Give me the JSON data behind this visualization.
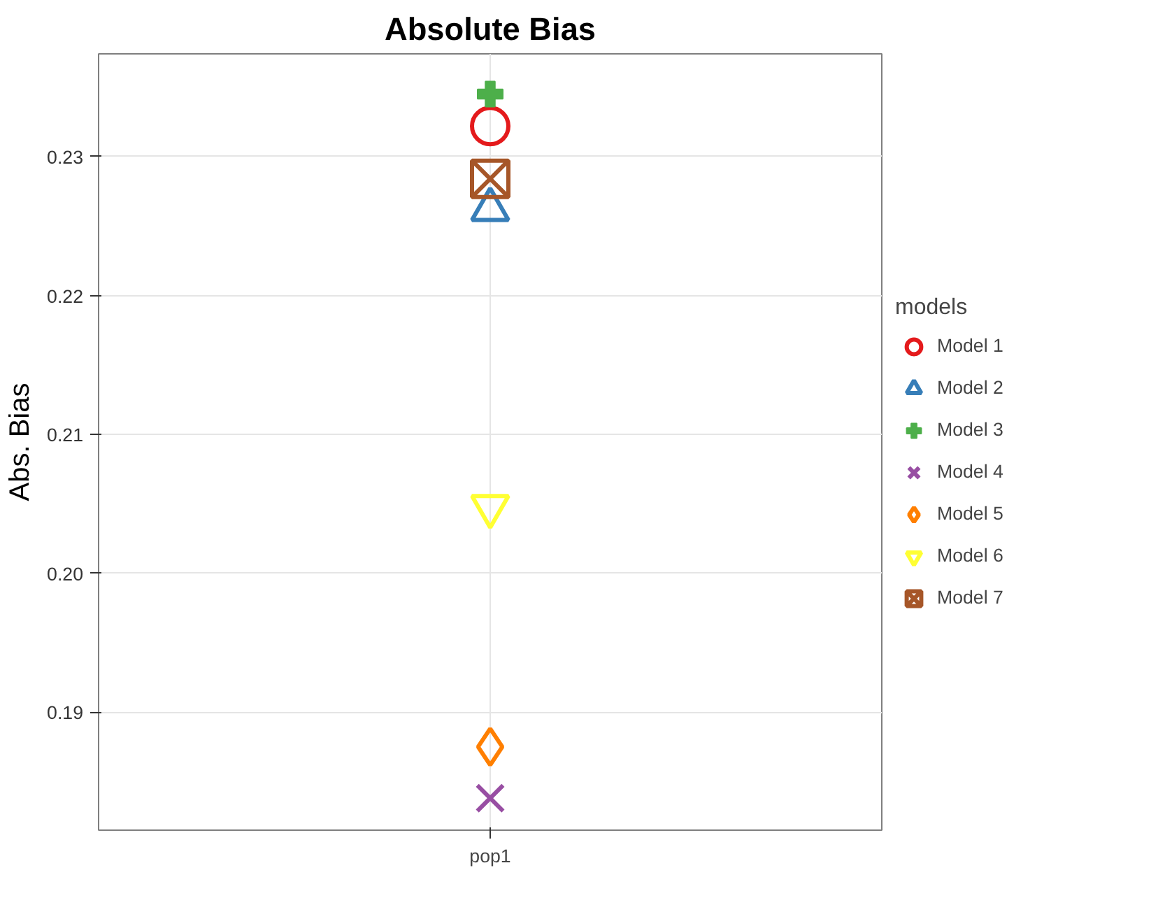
{
  "chart_data": {
    "type": "scatter",
    "title": "Absolute Bias",
    "ylabel": "Abs. Bias",
    "legend_title": "models",
    "categories": [
      "pop1"
    ],
    "ylim": [
      0.1815,
      0.2374
    ],
    "yticks": [
      0.19,
      {
        "value": 0.2,
        "label": "0.20"
      },
      0.21,
      0.22,
      0.23
    ],
    "grid": true,
    "legend": "right",
    "series": [
      {
        "name": "Model 1",
        "color": "#e41a1c",
        "marker": "circle",
        "values": [
          0.2322
        ]
      },
      {
        "name": "Model 2",
        "color": "#377eb8",
        "marker": "triangle",
        "values": [
          0.2262
        ]
      },
      {
        "name": "Model 3",
        "color": "#4daf4a",
        "marker": "cross",
        "values": [
          0.2345
        ]
      },
      {
        "name": "Model 4",
        "color": "#984ea3",
        "marker": "x",
        "values": [
          0.1838
        ]
      },
      {
        "name": "Model 5",
        "color": "#ff7f00",
        "marker": "diamond",
        "values": [
          0.1875
        ]
      },
      {
        "name": "Model 6",
        "color": "#ffff33",
        "values": [
          0.2048
        ]
      },
      {
        "name": "Model 7",
        "color": "#a65628",
        "marker": "square_x",
        "values": [
          0.2284
        ]
      }
    ]
  }
}
